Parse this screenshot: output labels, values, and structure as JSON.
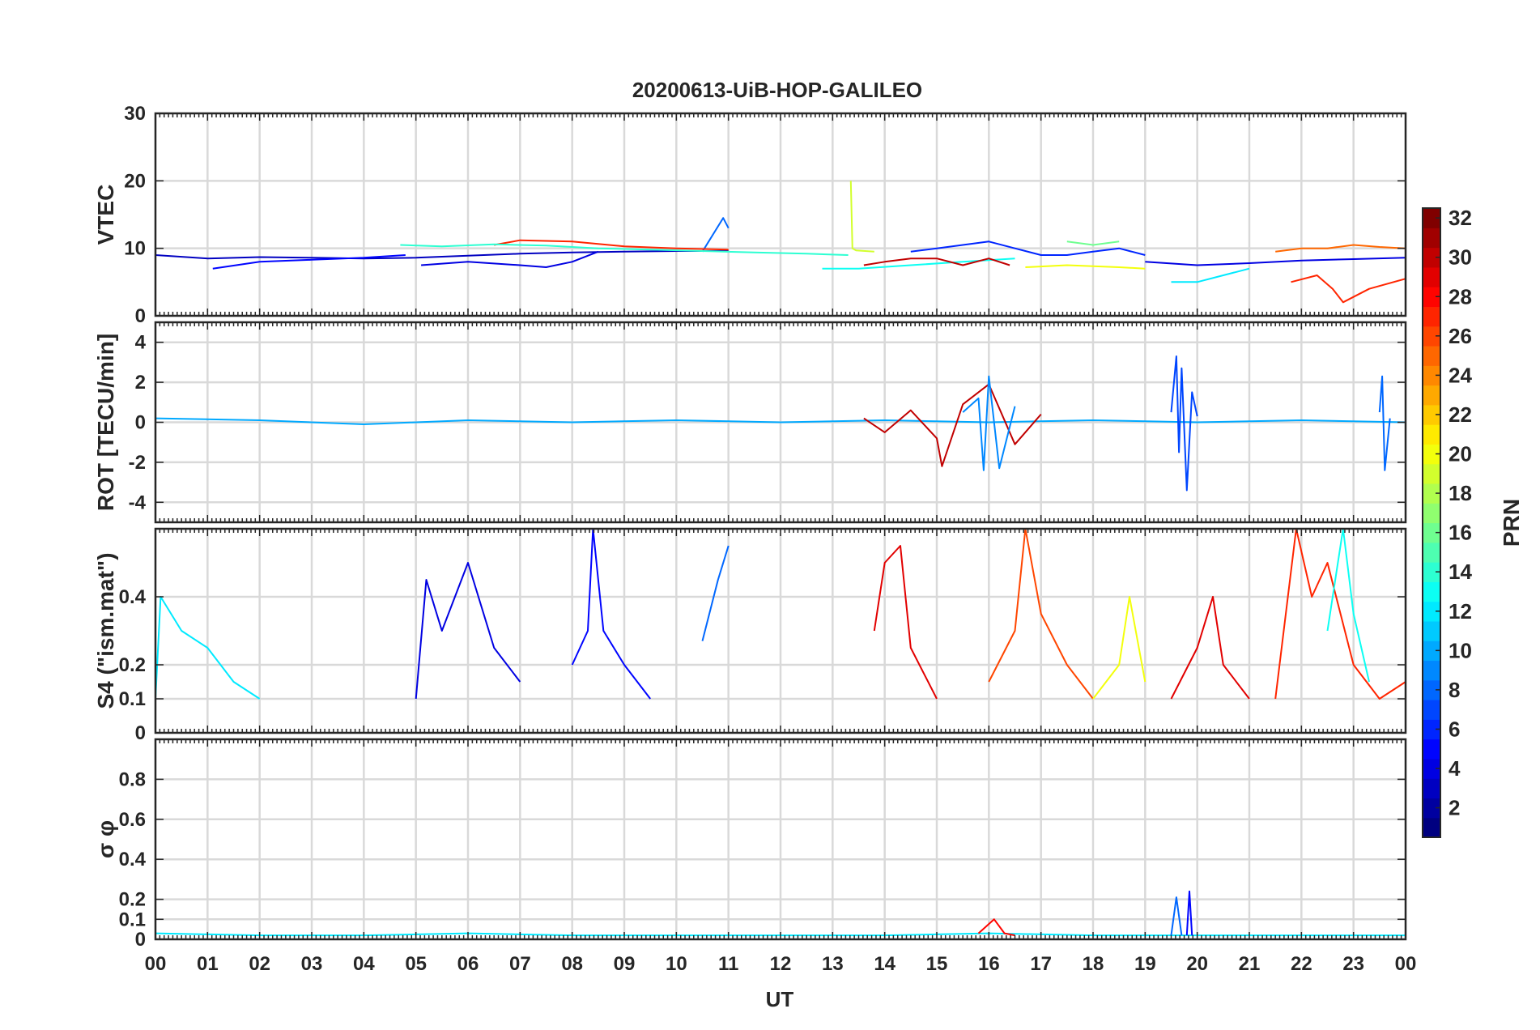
{
  "chart_data": {
    "type": "line",
    "title": "20200613-UiB-HOP-GALILEO",
    "xlabel": "UT",
    "x_ticks": [
      "00",
      "01",
      "02",
      "03",
      "04",
      "05",
      "06",
      "07",
      "08",
      "09",
      "10",
      "11",
      "12",
      "13",
      "14",
      "15",
      "16",
      "17",
      "18",
      "19",
      "20",
      "21",
      "22",
      "23",
      "00"
    ],
    "xlim": [
      0,
      24
    ],
    "grid": true,
    "panels": [
      {
        "id": "vtec",
        "ylabel": "VTEC",
        "ylim": [
          0,
          30
        ],
        "yticks": [
          0,
          10,
          20,
          30
        ],
        "series": [
          {
            "prn": 3,
            "x": [
              0,
              1,
              2,
              3,
              4,
              5,
              6,
              7,
              8,
              9,
              10,
              11
            ],
            "y": [
              9,
              8.5,
              8.7,
              8.6,
              8.5,
              8.6,
              8.9,
              9.2,
              9.4,
              9.5,
              9.6,
              9.6
            ]
          },
          {
            "prn": 5,
            "x": [
              1.1,
              2,
              3,
              4,
              4.8
            ],
            "y": [
              7,
              8,
              8.3,
              8.6,
              9
            ]
          },
          {
            "prn": 4,
            "x": [
              5.1,
              6,
              7,
              7.5,
              8,
              8.5
            ],
            "y": [
              7.5,
              8,
              7.5,
              7.2,
              8,
              9.5
            ]
          },
          {
            "prn": 8,
            "x": [
              10.5,
              10.9,
              11
            ],
            "y": [
              9.5,
              14.5,
              13
            ]
          },
          {
            "prn": 19,
            "x": [
              13.35,
              13.38,
              13.45,
              13.8
            ],
            "y": [
              20,
              10,
              9.7,
              9.5
            ]
          },
          {
            "prn": 27,
            "x": [
              6.5,
              7,
              8,
              9,
              10,
              11
            ],
            "y": [
              10.5,
              11.2,
              11,
              10.3,
              10,
              9.8
            ]
          },
          {
            "prn": 14,
            "x": [
              4.7,
              5.5,
              6.5,
              7.5,
              8.5,
              9.5,
              10.5,
              11.5,
              12.5,
              13.3
            ],
            "y": [
              10.5,
              10.3,
              10.6,
              10.4,
              10,
              9.8,
              9.6,
              9.4,
              9.2,
              9
            ]
          },
          {
            "prn": 13,
            "x": [
              12.8,
              13.5,
              14.5,
              15.5,
              16.5
            ],
            "y": [
              7,
              7,
              7.5,
              8,
              8.5
            ]
          },
          {
            "prn": 30,
            "x": [
              13.6,
              14,
              14.5,
              15,
              15.5,
              16,
              16.4
            ],
            "y": [
              7.5,
              8,
              8.5,
              8.5,
              7.5,
              8.5,
              7.5
            ]
          },
          {
            "prn": 6,
            "x": [
              14.5,
              15,
              15.5,
              16,
              16.5,
              17,
              17.5,
              18,
              18.5,
              19
            ],
            "y": [
              9.5,
              10,
              10.5,
              11,
              10,
              9,
              9,
              9.5,
              10,
              9
            ]
          },
          {
            "prn": 20,
            "x": [
              16.7,
              17.5,
              18.5,
              19
            ],
            "y": [
              7.2,
              7.5,
              7.2,
              7
            ]
          },
          {
            "prn": 16,
            "x": [
              17.5,
              18,
              18.5
            ],
            "y": [
              11,
              10.5,
              11
            ]
          },
          {
            "prn": 12,
            "x": [
              19.5,
              20,
              20.5,
              21
            ],
            "y": [
              5,
              5,
              6,
              7
            ]
          },
          {
            "prn": 25,
            "x": [
              21.5,
              22,
              22.5,
              23,
              23.5,
              24
            ],
            "y": [
              9.5,
              10,
              10,
              10.5,
              10.2,
              10
            ]
          },
          {
            "prn": 27,
            "x": [
              21.8,
              22.3,
              22.6,
              22.8,
              23.3,
              24
            ],
            "y": [
              5,
              6,
              4,
              2,
              4,
              5.5
            ]
          },
          {
            "prn": 4,
            "x": [
              19,
              20,
              21,
              22,
              23,
              24
            ],
            "y": [
              8,
              7.5,
              7.8,
              8.2,
              8.4,
              8.6
            ]
          }
        ]
      },
      {
        "id": "rot",
        "ylabel": "ROT [TECU/min]",
        "ylim": [
          -5,
          5
        ],
        "yticks": [
          -4,
          -2,
          0,
          2,
          4
        ],
        "series": [
          {
            "prn": 10,
            "x": [
              0,
              2,
              4,
              6,
              8,
              10,
              12,
              14,
              16,
              18,
              20,
              22,
              24
            ],
            "y": [
              0.2,
              0.1,
              -0.1,
              0.1,
              0,
              0.1,
              0,
              0.1,
              0,
              0.1,
              0,
              0.1,
              0
            ]
          },
          {
            "prn": 30,
            "x": [
              13.6,
              14,
              14.5,
              15,
              15.1,
              15.5,
              16,
              16.5,
              17
            ],
            "y": [
              0.2,
              -0.5,
              0.6,
              -0.8,
              -2.2,
              0.9,
              1.9,
              -1.1,
              0.4
            ]
          },
          {
            "prn": 9,
            "x": [
              15.5,
              15.8,
              15.9,
              16,
              16.2,
              16.5
            ],
            "y": [
              0.5,
              1.2,
              -2.4,
              2.3,
              -2.3,
              0.8
            ]
          },
          {
            "prn": 7,
            "x": [
              19.5,
              19.6,
              19.65,
              19.7,
              19.8,
              19.9,
              20
            ],
            "y": [
              0.5,
              3.3,
              -1.5,
              2.7,
              -3.4,
              1.5,
              0.3
            ]
          },
          {
            "prn": 8,
            "x": [
              23.5,
              23.55,
              23.6,
              23.7
            ],
            "y": [
              0.5,
              2.3,
              -2.4,
              0.2
            ]
          }
        ]
      },
      {
        "id": "s4",
        "ylabel": "S4 (\"ism.mat\")",
        "ylim": [
          0,
          0.6
        ],
        "yticks": [
          0,
          0.1,
          0.2,
          0.4
        ],
        "series": [
          {
            "prn": 12,
            "x": [
              0,
              0.1,
              0.5,
              1,
              1.5,
              2
            ],
            "y": [
              0.1,
              0.4,
              0.3,
              0.25,
              0.15,
              0.1
            ]
          },
          {
            "prn": 4,
            "x": [
              5,
              5.2,
              5.5,
              6,
              6.5,
              7
            ],
            "y": [
              0.1,
              0.45,
              0.3,
              0.5,
              0.25,
              0.15
            ]
          },
          {
            "prn": 5,
            "x": [
              8,
              8.3,
              8.4,
              8.6,
              9,
              9.5
            ],
            "y": [
              0.2,
              0.3,
              0.6,
              0.3,
              0.2,
              0.1
            ]
          },
          {
            "prn": 8,
            "x": [
              10.5,
              10.8,
              11
            ],
            "y": [
              0.27,
              0.45,
              0.55
            ]
          },
          {
            "prn": 29,
            "x": [
              13.8,
              14,
              14.3,
              14.5,
              15
            ],
            "y": [
              0.3,
              0.5,
              0.55,
              0.25,
              0.1
            ]
          },
          {
            "prn": 26,
            "x": [
              16,
              16.5,
              16.7,
              17,
              17.5,
              18
            ],
            "y": [
              0.15,
              0.3,
              0.6,
              0.35,
              0.2,
              0.1
            ]
          },
          {
            "prn": 20,
            "x": [
              18,
              18.5,
              18.7,
              19
            ],
            "y": [
              0.1,
              0.2,
              0.4,
              0.15
            ]
          },
          {
            "prn": 29,
            "x": [
              19.5,
              20,
              20.3,
              20.5,
              21
            ],
            "y": [
              0.1,
              0.25,
              0.4,
              0.2,
              0.1
            ]
          },
          {
            "prn": 27,
            "x": [
              21.5,
              21.9,
              22.2,
              22.5,
              23,
              23.5,
              24
            ],
            "y": [
              0.1,
              0.6,
              0.4,
              0.5,
              0.2,
              0.1,
              0.15
            ]
          },
          {
            "prn": 13,
            "x": [
              22.5,
              22.8,
              23,
              23.3
            ],
            "y": [
              0.3,
              0.6,
              0.35,
              0.15
            ]
          }
        ]
      },
      {
        "id": "sigma",
        "ylabel": "σ φ",
        "ylim": [
          0,
          1
        ],
        "yticks": [
          0,
          0.1,
          0.2,
          0.4,
          0.6,
          0.8
        ],
        "series": [
          {
            "prn": 12,
            "x": [
              0,
              2,
              4,
              6,
              8,
              10,
              12,
              14,
              16,
              18,
              20,
              22,
              24
            ],
            "y": [
              0.03,
              0.02,
              0.02,
              0.03,
              0.02,
              0.02,
              0.02,
              0.02,
              0.03,
              0.02,
              0.02,
              0.02,
              0.02
            ]
          },
          {
            "prn": 28,
            "x": [
              15.8,
              16.1,
              16.3,
              16.5
            ],
            "y": [
              0.03,
              0.1,
              0.03,
              0.02
            ]
          },
          {
            "prn": 8,
            "x": [
              19.5,
              19.6,
              19.7
            ],
            "y": [
              0.02,
              0.21,
              0.02
            ]
          },
          {
            "prn": 5,
            "x": [
              19.8,
              19.85,
              19.9
            ],
            "y": [
              0.02,
              0.24,
              0.02
            ]
          }
        ]
      }
    ],
    "colorbar": {
      "label": "PRN",
      "min": 1,
      "max": 32,
      "ticks": [
        2,
        4,
        6,
        8,
        10,
        12,
        14,
        16,
        18,
        20,
        22,
        24,
        26,
        28,
        30,
        32
      ],
      "colormap": "jet"
    }
  }
}
